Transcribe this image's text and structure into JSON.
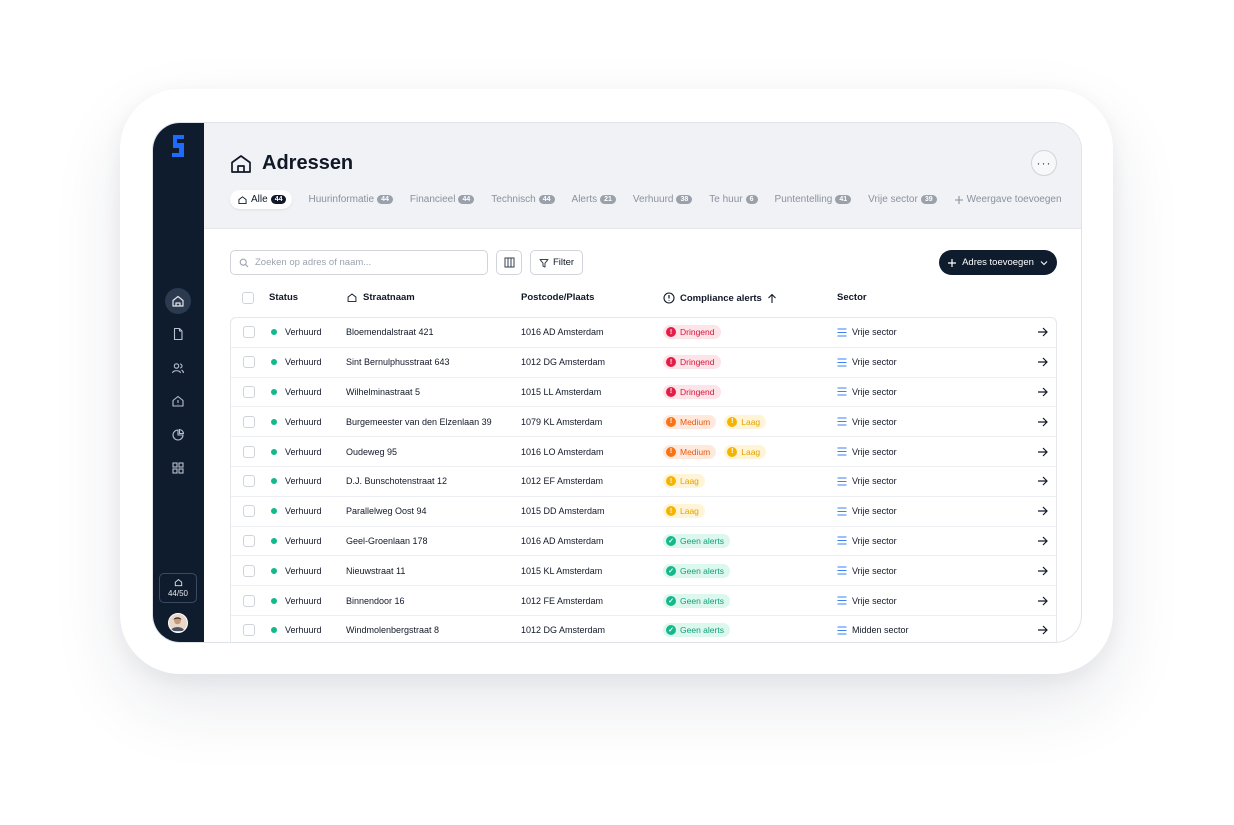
{
  "header": {
    "title": "Adressen",
    "more_label": "···"
  },
  "tabs": [
    {
      "label": "Alle",
      "count": "44"
    },
    {
      "label": "Huurinformatie",
      "count": "44"
    },
    {
      "label": "Financieel",
      "count": "44"
    },
    {
      "label": "Technisch",
      "count": "44"
    },
    {
      "label": "Alerts",
      "count": "21"
    },
    {
      "label": "Verhuurd",
      "count": "38"
    },
    {
      "label": "Te huur",
      "count": "6"
    },
    {
      "label": "Puntentelling",
      "count": "41"
    },
    {
      "label": "Vrije sector",
      "count": "39"
    }
  ],
  "add_view_label": "Weergave toevoegen",
  "toolbar": {
    "search_placeholder": "Zoeken op adres of naam...",
    "filter_label": "Filter",
    "add_label": "Adres toevoegen"
  },
  "sidebar": {
    "usage": "44/50"
  },
  "table": {
    "headers": {
      "status": "Status",
      "street": "Straatnaam",
      "postcode": "Postcode/Plaats",
      "alerts": "Compliance alerts",
      "sector": "Sector"
    },
    "rows": [
      {
        "status": "Verhuurd",
        "street": "Bloemendalstraat 421",
        "postcode": "1016 AD Amsterdam",
        "alerts": [
          {
            "label": "Dringend",
            "level": "red"
          }
        ],
        "sector": "Vrije sector"
      },
      {
        "status": "Verhuurd",
        "street": "Sint Bernulphusstraat 643",
        "postcode": "1012 DG Amsterdam",
        "alerts": [
          {
            "label": "Dringend",
            "level": "red"
          }
        ],
        "sector": "Vrije sector"
      },
      {
        "status": "Verhuurd",
        "street": "Wilhelminastraat 5",
        "postcode": "1015 LL Amsterdam",
        "alerts": [
          {
            "label": "Dringend",
            "level": "red"
          }
        ],
        "sector": "Vrije sector"
      },
      {
        "status": "Verhuurd",
        "street": "Burgemeester van den Elzenlaan 39",
        "postcode": "1079 KL Amsterdam",
        "alerts": [
          {
            "label": "Medium",
            "level": "orange"
          },
          {
            "label": "Laag",
            "level": "yellow"
          }
        ],
        "sector": "Vrije sector"
      },
      {
        "status": "Verhuurd",
        "street": "Oudeweg 95",
        "postcode": "1016 LO Amsterdam",
        "alerts": [
          {
            "label": "Medium",
            "level": "orange"
          },
          {
            "label": "Laag",
            "level": "yellow"
          }
        ],
        "sector": "Vrije sector"
      },
      {
        "status": "Verhuurd",
        "street": "D.J. Bunschotenstraat 12",
        "postcode": "1012 EF Amsterdam",
        "alerts": [
          {
            "label": "Laag",
            "level": "yellow"
          }
        ],
        "sector": "Vrije sector"
      },
      {
        "status": "Verhuurd",
        "street": "Parallelweg Oost 94",
        "postcode": "1015 DD Amsterdam",
        "alerts": [
          {
            "label": "Laag",
            "level": "yellow"
          }
        ],
        "sector": "Vrije sector"
      },
      {
        "status": "Verhuurd",
        "street": "Geel-Groenlaan 178",
        "postcode": "1016 AD Amsterdam",
        "alerts": [
          {
            "label": "Geen alerts",
            "level": "green"
          }
        ],
        "sector": "Vrije sector"
      },
      {
        "status": "Verhuurd",
        "street": "Nieuwstraat 11",
        "postcode": "1015 KL Amsterdam",
        "alerts": [
          {
            "label": "Geen alerts",
            "level": "green"
          }
        ],
        "sector": "Vrije sector"
      },
      {
        "status": "Verhuurd",
        "street": "Binnendoor 16",
        "postcode": "1012 FE Amsterdam",
        "alerts": [
          {
            "label": "Geen alerts",
            "level": "green"
          }
        ],
        "sector": "Vrije sector"
      },
      {
        "status": "Verhuurd",
        "street": "Windmolenbergstraat 8",
        "postcode": "1012 DG Amsterdam",
        "alerts": [
          {
            "label": "Geen alerts",
            "level": "green"
          }
        ],
        "sector": "Midden sector"
      }
    ]
  },
  "colors": {
    "sidebar": "#0f1c2e",
    "accent": "#1e6bff",
    "status_green": "#14b88a",
    "alert_red": "#e11d48",
    "alert_orange": "#f97316",
    "alert_yellow": "#f5b400"
  },
  "icons": {
    "page": "house-icon",
    "search": "search-icon",
    "columns": "columns-icon",
    "filter": "filter-icon",
    "add": "plus-icon",
    "sector": "list-icon",
    "row_action": "arrow-right-icon"
  }
}
